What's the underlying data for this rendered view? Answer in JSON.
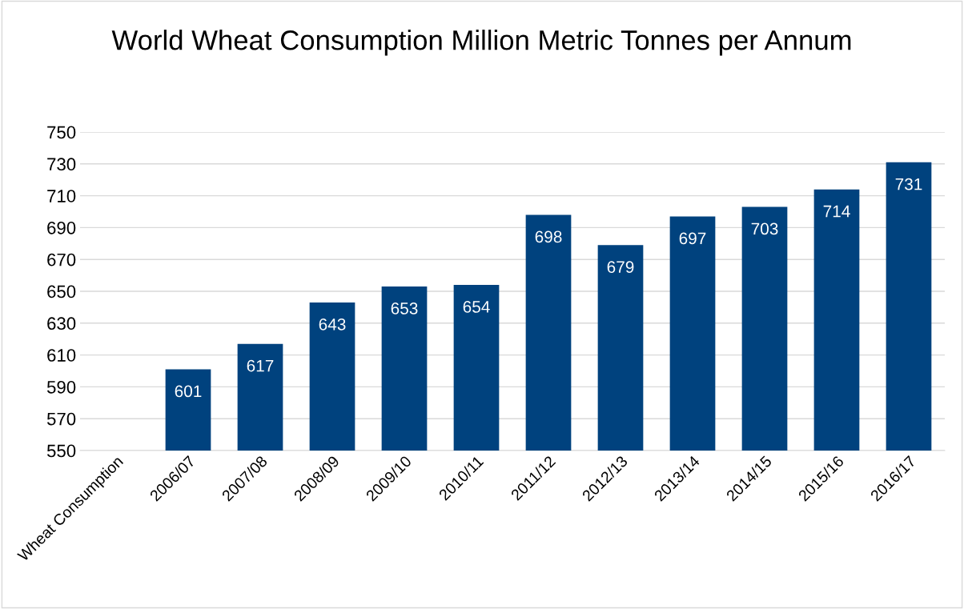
{
  "chart_data": {
    "type": "bar",
    "title": "World Wheat Consumption Million Metric Tonnes per Annum",
    "categories": [
      "Wheat Consumption",
      "2006/07",
      "2007/08",
      "2008/09",
      "2009/10",
      "2010/11",
      "2011/12",
      "2012/13",
      "2013/14",
      "2014/15",
      "2015/16",
      "2016/17"
    ],
    "values": [
      null,
      601,
      617,
      643,
      653,
      654,
      698,
      679,
      697,
      703,
      714,
      731
    ],
    "color": "#00427e",
    "ylim": [
      550,
      750
    ],
    "yticks": [
      550,
      570,
      590,
      610,
      630,
      650,
      670,
      690,
      710,
      730,
      750
    ],
    "grid": "y",
    "data_labels": true
  }
}
